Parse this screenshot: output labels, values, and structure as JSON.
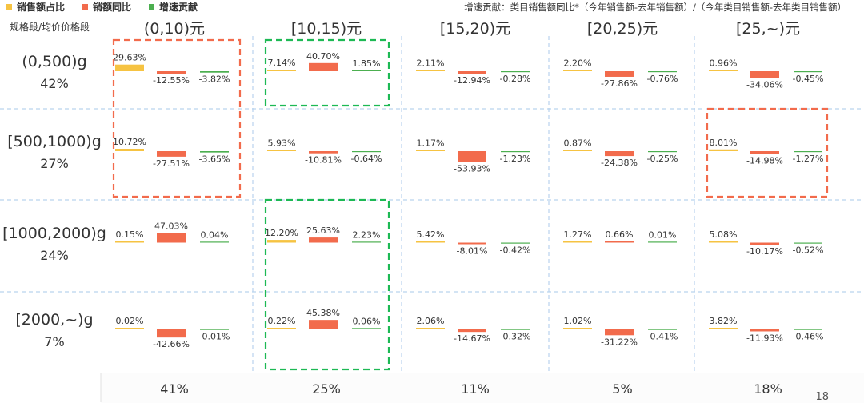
{
  "legend": {
    "items": [
      {
        "label": "销售额占比",
        "color": "#F6C342"
      },
      {
        "label": "销额同比",
        "color": "#F26B4C"
      },
      {
        "label": "增速贡献",
        "color": "#4CAF50"
      }
    ]
  },
  "note": "增速贡献：类目销售额同比*（今年销售额-去年销售额）/（今年类目销售额-去年类目销售额）",
  "corner_label": "规格段/均价价格段",
  "page_number": "18",
  "chart_data": {
    "type": "bar",
    "price_segments": [
      "(0,10)元",
      "[10,15)元",
      "[15,20)元",
      "[20,25)元",
      "[25,~)元"
    ],
    "price_segment_shares": [
      "41%",
      "25%",
      "11%",
      "5%",
      "18%"
    ],
    "spec_segments": [
      {
        "label": "(0,500)g",
        "share": "42%"
      },
      {
        "label": "[500,1000)g",
        "share": "27%"
      },
      {
        "label": "[1000,2000)g",
        "share": "24%"
      },
      {
        "label": "[2000,~)g",
        "share": "7%"
      }
    ],
    "metrics": [
      "销售额占比",
      "销额同比",
      "增速贡献"
    ],
    "cells": [
      [
        {
          "share": 29.63,
          "yoy": -12.55,
          "contrib": -3.82
        },
        {
          "share": 7.14,
          "yoy": 40.7,
          "contrib": 1.85
        },
        {
          "share": 2.11,
          "yoy": -12.94,
          "contrib": -0.28
        },
        {
          "share": 2.2,
          "yoy": -27.86,
          "contrib": -0.76
        },
        {
          "share": 0.96,
          "yoy": -34.06,
          "contrib": -0.45
        }
      ],
      [
        {
          "share": 10.72,
          "yoy": -27.51,
          "contrib": -3.65
        },
        {
          "share": 5.93,
          "yoy": -10.81,
          "contrib": -0.64
        },
        {
          "share": 1.17,
          "yoy": -53.93,
          "contrib": -1.23
        },
        {
          "share": 0.87,
          "yoy": -24.38,
          "contrib": -0.25
        },
        {
          "share": 8.01,
          "yoy": -14.98,
          "contrib": -1.27
        }
      ],
      [
        {
          "share": 0.15,
          "yoy": 47.03,
          "contrib": 0.04
        },
        {
          "share": 12.2,
          "yoy": 25.63,
          "contrib": 2.23
        },
        {
          "share": 5.42,
          "yoy": -8.01,
          "contrib": -0.42
        },
        {
          "share": 1.27,
          "yoy": 0.66,
          "contrib": 0.01
        },
        {
          "share": 5.08,
          "yoy": -10.17,
          "contrib": -0.52
        }
      ],
      [
        {
          "share": 0.02,
          "yoy": -42.66,
          "contrib": -0.01
        },
        {
          "share": 0.22,
          "yoy": 45.38,
          "contrib": 0.06
        },
        {
          "share": 2.06,
          "yoy": -14.67,
          "contrib": -0.32
        },
        {
          "share": 1.02,
          "yoy": -31.22,
          "contrib": -0.41
        },
        {
          "share": 3.82,
          "yoy": -11.93,
          "contrib": -0.46
        }
      ]
    ],
    "highlights": [
      {
        "color": "#F26B4C",
        "rows": [
          0,
          1
        ],
        "cols": [
          0,
          0
        ]
      },
      {
        "color": "#1DB954",
        "rows": [
          0,
          0
        ],
        "cols": [
          1,
          1
        ]
      },
      {
        "color": "#1DB954",
        "rows": [
          2,
          3
        ],
        "cols": [
          1,
          1
        ]
      },
      {
        "color": "#F26B4C",
        "rows": [
          1,
          1
        ],
        "cols": [
          4,
          4
        ]
      }
    ]
  }
}
